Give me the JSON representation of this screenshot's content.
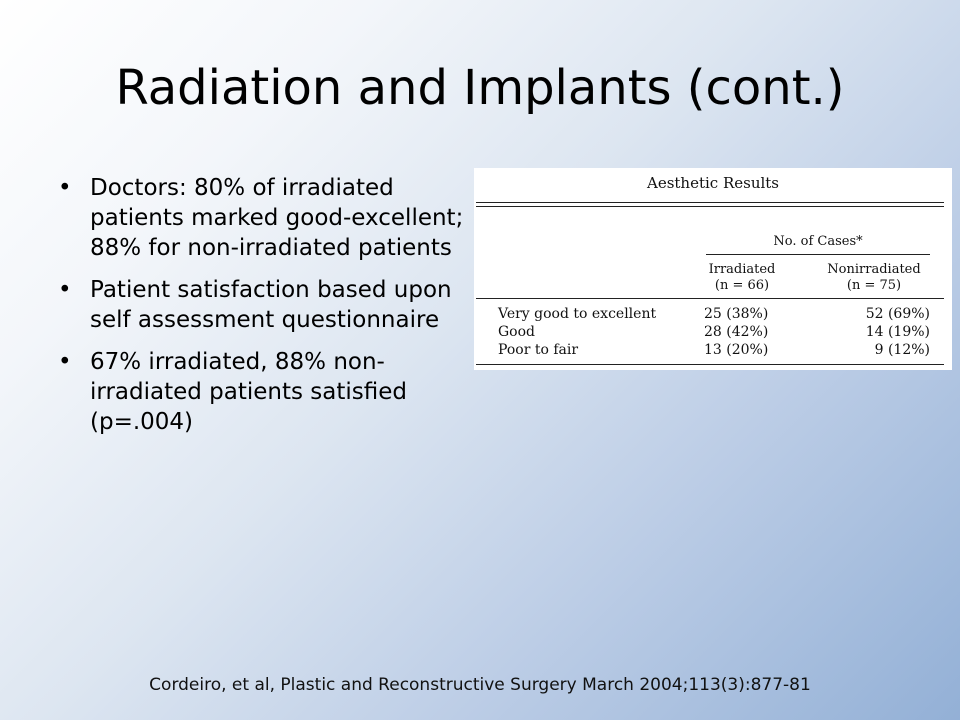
{
  "slide": {
    "title": "Radiation and Implants (cont.)",
    "bullets": [
      "Doctors: 80% of irradiated patients marked good-excellent; 88% for non-irradiated patients",
      "Patient satisfaction based upon self assessment questionnaire",
      "67% irradiated, 88% non-irradiated patients satisfied (p=.004)"
    ],
    "bullet_symbol": "•",
    "citation": "Cordeiro, et al, Plastic and Reconstructive Surgery March 2004;113(3):877-81"
  },
  "table": {
    "caption": "Aesthetic Results",
    "group_header": "No. of Cases*",
    "columns": [
      {
        "name": "Irradiated",
        "n": "(n = 66)"
      },
      {
        "name": "Nonirradiated",
        "n": "(n = 75)"
      }
    ],
    "rows": [
      {
        "label": "Very good to excellent",
        "irradiated": "25 (38%)",
        "nonirradiated": "52 (69%)"
      },
      {
        "label": "Good",
        "irradiated": "28 (42%)",
        "nonirradiated": "14 (19%)"
      },
      {
        "label": "Poor to fair",
        "irradiated": "13 (20%)",
        "nonirradiated": "9 (12%)"
      }
    ]
  }
}
